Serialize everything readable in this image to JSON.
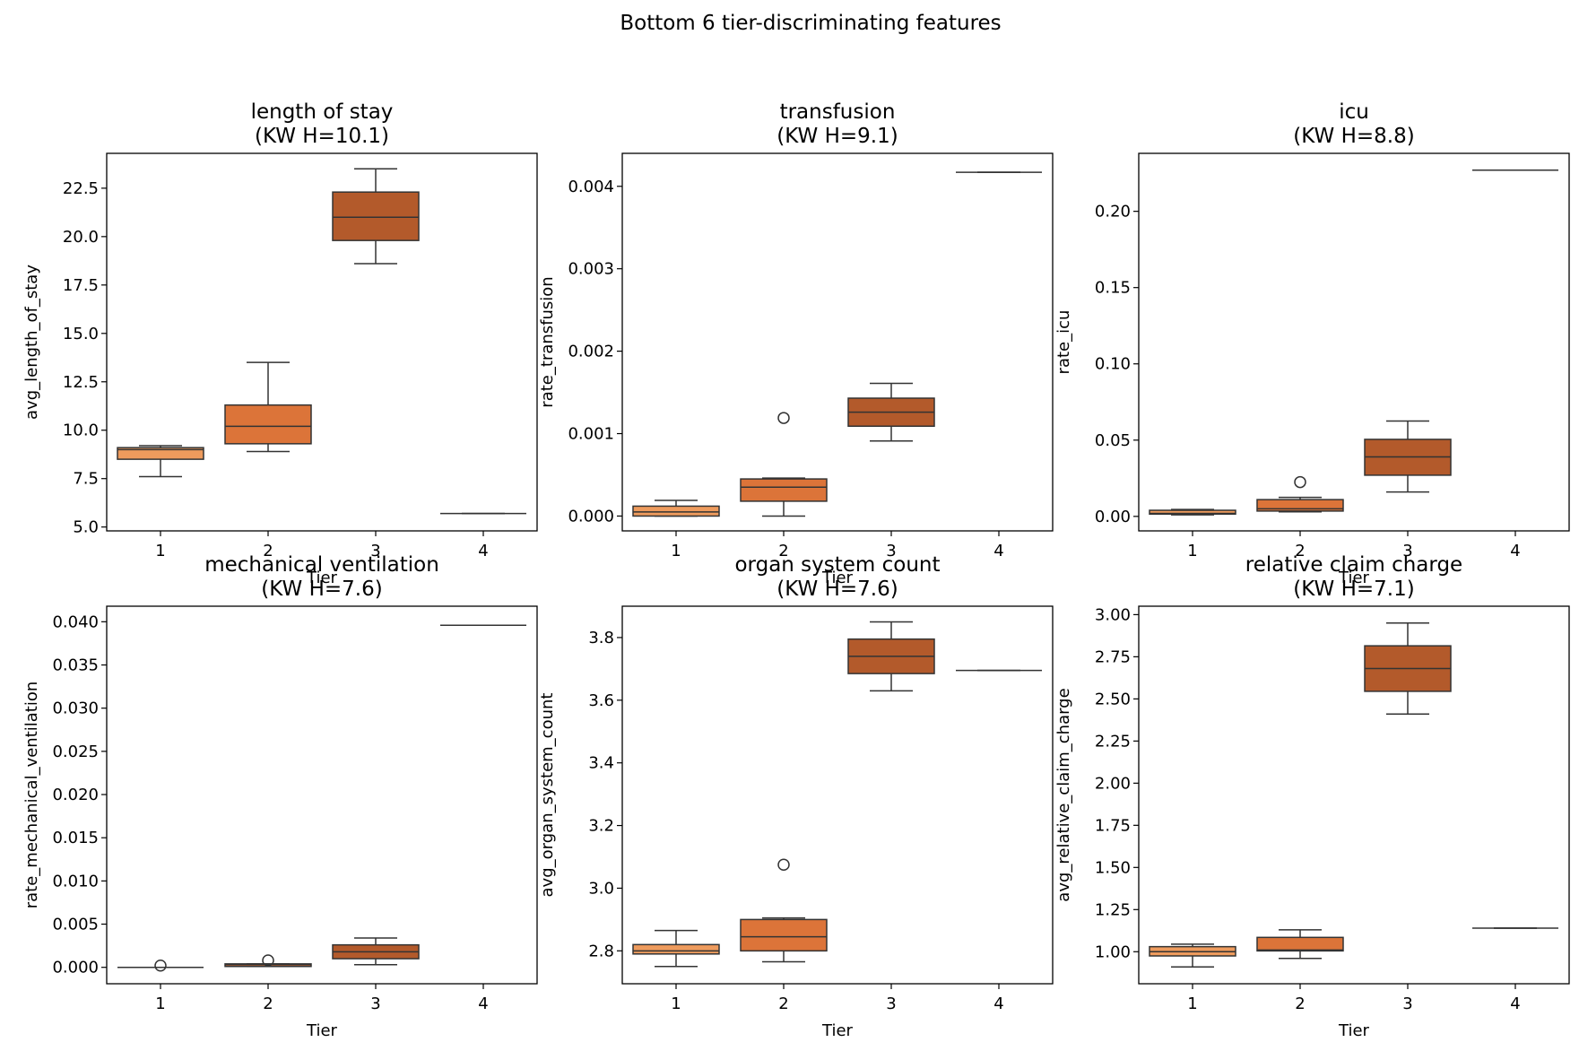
{
  "figure": {
    "title": "Bottom 6 tier-discriminating features",
    "colors": {
      "1": "#ee9b5d",
      "2": "#dc7439",
      "3": "#b35a2b",
      "4": "#b35a2b",
      "line": "#333333",
      "frame": "#000000"
    }
  },
  "chart_data": [
    {
      "type": "box",
      "title": "length of stay",
      "stat_label": "(KW H=10.1)",
      "xlabel": "Tier",
      "ylabel": "avg_length_of_stay",
      "categories": [
        "1",
        "2",
        "3",
        "4"
      ],
      "ylim": [
        4.8,
        24.3
      ],
      "yticks": [
        5.0,
        7.5,
        10.0,
        12.5,
        15.0,
        17.5,
        20.0,
        22.5
      ],
      "ytick_labels": [
        "5.0",
        "7.5",
        "10.0",
        "12.5",
        "15.0",
        "17.5",
        "20.0",
        "22.5"
      ],
      "boxes": [
        {
          "tier": "1",
          "whislo": 7.6,
          "q1": 8.5,
          "med": 9.0,
          "q3": 9.1,
          "whishi": 9.2,
          "fliers": []
        },
        {
          "tier": "2",
          "whislo": 8.9,
          "q1": 9.3,
          "med": 10.2,
          "q3": 11.3,
          "whishi": 13.5,
          "fliers": []
        },
        {
          "tier": "3",
          "whislo": 18.6,
          "q1": 19.8,
          "med": 21.0,
          "q3": 22.3,
          "whishi": 23.5,
          "fliers": []
        },
        {
          "tier": "4",
          "whislo": 5.7,
          "q1": 5.7,
          "med": 5.7,
          "q3": 5.7,
          "whishi": 5.7,
          "fliers": []
        }
      ]
    },
    {
      "type": "box",
      "title": "transfusion",
      "stat_label": "(KW H=9.1)",
      "xlabel": "Tier",
      "ylabel": "rate_transfusion",
      "categories": [
        "1",
        "2",
        "3",
        "4"
      ],
      "ylim": [
        -0.00018,
        0.0044
      ],
      "yticks": [
        0.0,
        0.001,
        0.002,
        0.003,
        0.004
      ],
      "ytick_labels": [
        "0.000",
        "0.001",
        "0.002",
        "0.003",
        "0.004"
      ],
      "boxes": [
        {
          "tier": "1",
          "whislo": 0.0,
          "q1": 0.0,
          "med": 5e-05,
          "q3": 0.00012,
          "whishi": 0.00019,
          "fliers": []
        },
        {
          "tier": "2",
          "whislo": 0.0,
          "q1": 0.00018,
          "med": 0.00035,
          "q3": 0.00045,
          "whishi": 0.00046,
          "fliers": [
            0.00119
          ]
        },
        {
          "tier": "3",
          "whislo": 0.00091,
          "q1": 0.00109,
          "med": 0.00126,
          "q3": 0.00143,
          "whishi": 0.00161,
          "fliers": []
        },
        {
          "tier": "4",
          "whislo": 0.00417,
          "q1": 0.00417,
          "med": 0.00417,
          "q3": 0.00417,
          "whishi": 0.00417,
          "fliers": []
        }
      ]
    },
    {
      "type": "box",
      "title": "icu",
      "stat_label": "(KW H=8.8)",
      "xlabel": "Tier",
      "ylabel": "rate_icu",
      "categories": [
        "1",
        "2",
        "3",
        "4"
      ],
      "ylim": [
        -0.0095,
        0.238
      ],
      "yticks": [
        0.0,
        0.05,
        0.1,
        0.15,
        0.2
      ],
      "ytick_labels": [
        "0.00",
        "0.05",
        "0.10",
        "0.15",
        "0.20"
      ],
      "boxes": [
        {
          "tier": "1",
          "whislo": 0.001,
          "q1": 0.0015,
          "med": 0.002,
          "q3": 0.004,
          "whishi": 0.0045,
          "fliers": []
        },
        {
          "tier": "2",
          "whislo": 0.003,
          "q1": 0.0035,
          "med": 0.005,
          "q3": 0.011,
          "whishi": 0.0125,
          "fliers": [
            0.0225
          ]
        },
        {
          "tier": "3",
          "whislo": 0.016,
          "q1": 0.027,
          "med": 0.039,
          "q3": 0.0505,
          "whishi": 0.0625,
          "fliers": []
        },
        {
          "tier": "4",
          "whislo": 0.227,
          "q1": 0.227,
          "med": 0.227,
          "q3": 0.227,
          "whishi": 0.227,
          "fliers": []
        }
      ]
    },
    {
      "type": "box",
      "title": "mechanical ventilation",
      "stat_label": "(KW H=7.6)",
      "xlabel": "Tier",
      "ylabel": "rate_mechanical_ventilation",
      "categories": [
        "1",
        "2",
        "3",
        "4"
      ],
      "ylim": [
        -0.0019,
        0.0418
      ],
      "yticks": [
        0.0,
        0.005,
        0.01,
        0.015,
        0.02,
        0.025,
        0.03,
        0.035,
        0.04
      ],
      "ytick_labels": [
        "0.000",
        "0.005",
        "0.010",
        "0.015",
        "0.020",
        "0.025",
        "0.030",
        "0.035",
        "0.040"
      ],
      "boxes": [
        {
          "tier": "1",
          "whislo": 0.0,
          "q1": 0.0,
          "med": 0.0,
          "q3": 0.0,
          "whishi": 0.0,
          "fliers": [
            0.0002
          ]
        },
        {
          "tier": "2",
          "whislo": 0.0001,
          "q1": 0.0001,
          "med": 0.0003,
          "q3": 0.0004,
          "whishi": 0.0004,
          "fliers": [
            0.0008
          ]
        },
        {
          "tier": "3",
          "whislo": 0.0003,
          "q1": 0.001,
          "med": 0.0018,
          "q3": 0.0026,
          "whishi": 0.0034,
          "fliers": []
        },
        {
          "tier": "4",
          "whislo": 0.0396,
          "q1": 0.0396,
          "med": 0.0396,
          "q3": 0.0396,
          "whishi": 0.0396,
          "fliers": []
        }
      ]
    },
    {
      "type": "box",
      "title": "organ system count",
      "stat_label": "(KW H=7.6)",
      "xlabel": "Tier",
      "ylabel": "avg_organ_system_count",
      "categories": [
        "1",
        "2",
        "3",
        "4"
      ],
      "ylim": [
        2.695,
        3.9
      ],
      "yticks": [
        2.8,
        3.0,
        3.2,
        3.4,
        3.6,
        3.8
      ],
      "ytick_labels": [
        "2.8",
        "3.0",
        "3.2",
        "3.4",
        "3.6",
        "3.8"
      ],
      "boxes": [
        {
          "tier": "1",
          "whislo": 2.75,
          "q1": 2.79,
          "med": 2.8,
          "q3": 2.82,
          "whishi": 2.865,
          "fliers": []
        },
        {
          "tier": "2",
          "whislo": 2.765,
          "q1": 2.8,
          "med": 2.845,
          "q3": 2.9,
          "whishi": 2.905,
          "fliers": [
            3.075
          ]
        },
        {
          "tier": "3",
          "whislo": 3.63,
          "q1": 3.685,
          "med": 3.74,
          "q3": 3.795,
          "whishi": 3.85,
          "fliers": []
        },
        {
          "tier": "4",
          "whislo": 3.695,
          "q1": 3.695,
          "med": 3.695,
          "q3": 3.695,
          "whishi": 3.695,
          "fliers": []
        }
      ]
    },
    {
      "type": "box",
      "title": "relative claim charge",
      "stat_label": "(KW H=7.1)",
      "xlabel": "Tier",
      "ylabel": "avg_relative_claim_charge",
      "categories": [
        "1",
        "2",
        "3",
        "4"
      ],
      "ylim": [
        0.81,
        3.05
      ],
      "yticks": [
        1.0,
        1.25,
        1.5,
        1.75,
        2.0,
        2.25,
        2.5,
        2.75,
        3.0
      ],
      "ytick_labels": [
        "1.00",
        "1.25",
        "1.50",
        "1.75",
        "2.00",
        "2.25",
        "2.50",
        "2.75",
        "3.00"
      ],
      "boxes": [
        {
          "tier": "1",
          "whislo": 0.91,
          "q1": 0.975,
          "med": 1.0,
          "q3": 1.03,
          "whishi": 1.045,
          "fliers": []
        },
        {
          "tier": "2",
          "whislo": 0.96,
          "q1": 1.005,
          "med": 1.01,
          "q3": 1.085,
          "whishi": 1.13,
          "fliers": []
        },
        {
          "tier": "3",
          "whislo": 2.41,
          "q1": 2.545,
          "med": 2.68,
          "q3": 2.815,
          "whishi": 2.95,
          "fliers": []
        },
        {
          "tier": "4",
          "whislo": 1.14,
          "q1": 1.14,
          "med": 1.14,
          "q3": 1.14,
          "whishi": 1.14,
          "fliers": []
        }
      ]
    }
  ]
}
